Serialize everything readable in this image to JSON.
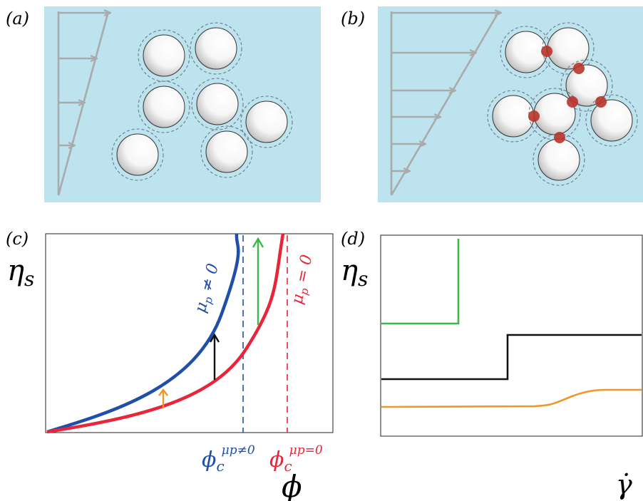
{
  "panels": {
    "a": {
      "label": "(a)"
    },
    "b": {
      "label": "(b)"
    },
    "c": {
      "label": "(c)",
      "ylabel": "η",
      "ylabel_sub": "s",
      "xlabel": "ϕ",
      "curve_blue_label": "μ",
      "curve_blue_label_sub": "p",
      "curve_blue_label_rel": " ≠ 0",
      "curve_red_label": "μ",
      "curve_red_label_sub": "p",
      "curve_red_label_rel": " = 0",
      "phi_c_blue": "ϕ",
      "phi_c_blue_sub": "c",
      "phi_c_blue_sup": "μp≠0",
      "phi_c_red": "ϕ",
      "phi_c_red_sub": "c",
      "phi_c_red_sup": "μp=0"
    },
    "d": {
      "label": "(d)",
      "ylabel": "η",
      "ylabel_sub": "s",
      "xlabel": "γ̇"
    }
  },
  "colors": {
    "fluid": "#bde3ee",
    "blue": "#1f4fa8",
    "red": "#e8253a",
    "green": "#3cb84a",
    "black": "#111111",
    "orange": "#f0962a",
    "contact": "#b8342a",
    "arrow_gray": "#aaaaaa"
  }
}
